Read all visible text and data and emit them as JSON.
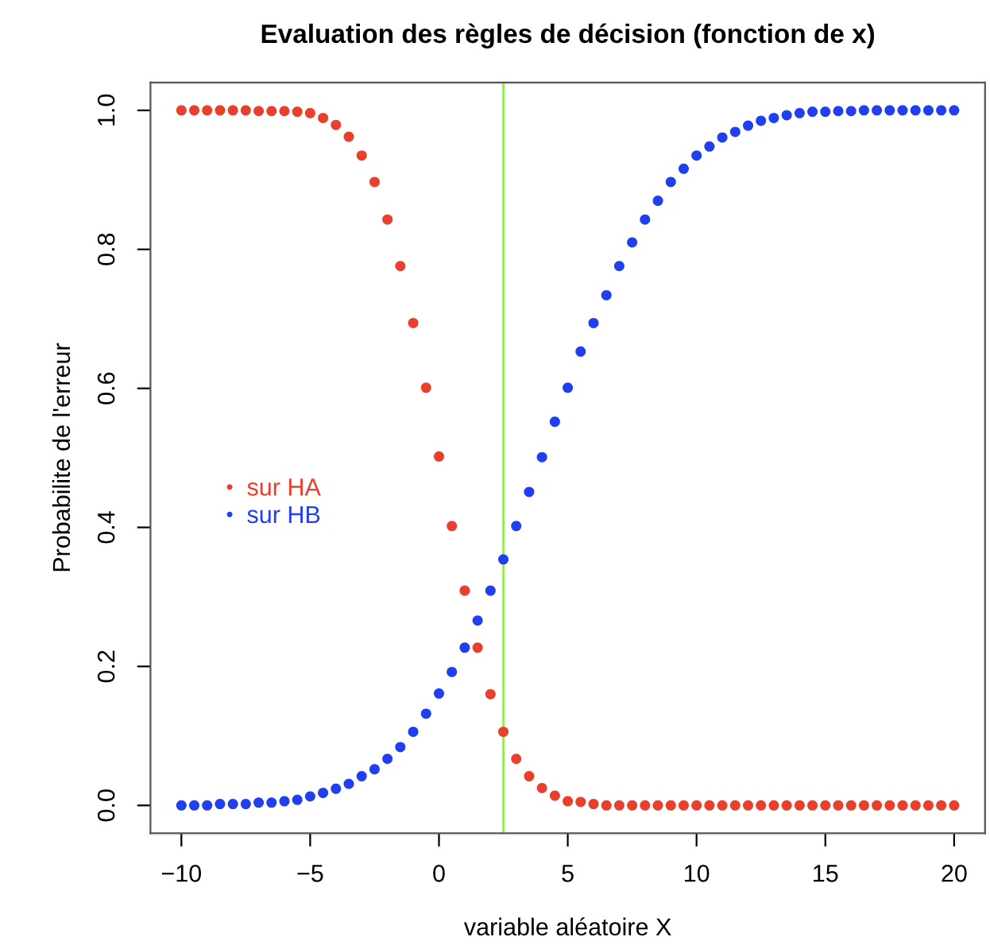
{
  "chart_data": {
    "type": "scatter",
    "title": "Evaluation des règles de décision (fonction de x)",
    "xlabel": "variable aléatoire X",
    "ylabel": "Probabilite de l'erreur",
    "x": [
      -10,
      -9.5,
      -9,
      -8.5,
      -8,
      -7.5,
      -7,
      -6.5,
      -6,
      -5.5,
      -5,
      -4.5,
      -4,
      -3.5,
      -3,
      -2.5,
      -2,
      -1.5,
      -1,
      -0.5,
      0,
      0.5,
      1,
      1.5,
      2,
      2.5,
      3,
      3.5,
      4,
      4.5,
      5,
      5.5,
      6,
      6.5,
      7,
      7.5,
      8,
      8.5,
      9,
      9.5,
      10,
      10.5,
      11,
      11.5,
      12,
      12.5,
      13,
      13.5,
      14,
      14.5,
      15,
      15.5,
      16,
      16.5,
      17,
      17.5,
      18,
      18.5,
      19,
      19.5,
      20
    ],
    "series": [
      {
        "name": "sur HA",
        "color": "#e8402c",
        "values": [
          1.0,
          1.0,
          1.0,
          1.0,
          1.0,
          1.0,
          0.999,
          0.999,
          0.999,
          0.998,
          0.996,
          0.989,
          0.979,
          0.962,
          0.935,
          0.897,
          0.843,
          0.776,
          0.694,
          0.601,
          0.502,
          0.402,
          0.309,
          0.227,
          0.16,
          0.106,
          0.067,
          0.042,
          0.025,
          0.014,
          0.006,
          0.005,
          0.002,
          0.0,
          0.0,
          0.0,
          0.0,
          0.0,
          0.0,
          0.0,
          0.0,
          0.0,
          0.0,
          0.0,
          0.0,
          0.0,
          0.0,
          0.0,
          0.0,
          0.0,
          0.0,
          0.0,
          0.0,
          0.0,
          0.0,
          0.0,
          0.0,
          0.0,
          0.0,
          0.0,
          0.0
        ]
      },
      {
        "name": "sur HB",
        "color": "#2040f0",
        "values": [
          0.0,
          0.0,
          0.0,
          0.002,
          0.002,
          0.002,
          0.004,
          0.004,
          0.006,
          0.008,
          0.013,
          0.018,
          0.024,
          0.031,
          0.042,
          0.052,
          0.067,
          0.084,
          0.106,
          0.132,
          0.161,
          0.192,
          0.227,
          0.266,
          0.309,
          0.354,
          0.402,
          0.451,
          0.501,
          0.552,
          0.601,
          0.653,
          0.694,
          0.734,
          0.776,
          0.81,
          0.843,
          0.87,
          0.897,
          0.916,
          0.935,
          0.948,
          0.961,
          0.969,
          0.978,
          0.985,
          0.989,
          0.993,
          0.996,
          0.998,
          0.998,
          0.999,
          0.999,
          1.0,
          1.0,
          1.0,
          1.0,
          1.0,
          1.0,
          1.0,
          1.0
        ]
      }
    ],
    "ref_lines": [
      {
        "axis": "x",
        "value": 2.5,
        "color": "#90ee50"
      }
    ],
    "xlim": [
      -11.2,
      21.2
    ],
    "ylim": [
      -0.04,
      1.04
    ],
    "xticks": [
      -10,
      -5,
      0,
      5,
      10,
      15,
      20
    ],
    "yticks": [
      {
        "value": 0,
        "label": "0.0"
      },
      0.2,
      0.4,
      0.6,
      0.8,
      {
        "value": 1,
        "label": "1.0"
      }
    ],
    "marker": "circle",
    "grid": false,
    "legend": "left"
  }
}
